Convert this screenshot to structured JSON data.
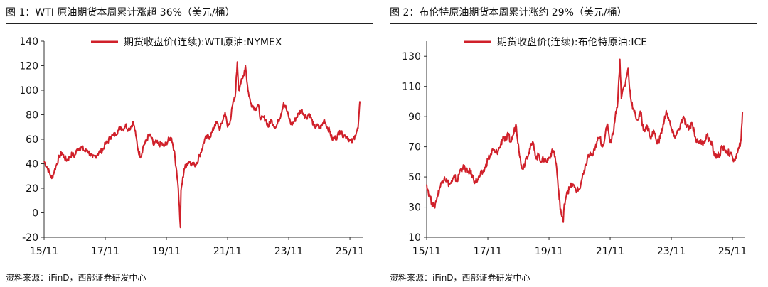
{
  "colors": {
    "line": "#d0202a",
    "axis": "#333333",
    "text": "#111111"
  },
  "chart_data": [
    {
      "type": "line",
      "figure_title": "图 1：WTI 原油期货本周累计涨超 36%（美元/桶）",
      "legend": "期货收盘价(连续):WTI原油:NYMEX",
      "source": "资料来源：iFinD，西部证券研发中心",
      "categories": [
        "15/11",
        "17/11",
        "19/11",
        "21/11",
        "23/11",
        "25/11"
      ],
      "y_ticks": [
        140,
        120,
        100,
        80,
        60,
        40,
        20,
        0,
        -20
      ],
      "xlim": [
        2015.833,
        2026.25
      ],
      "ylim": [
        -20,
        140
      ],
      "series": [
        {
          "name": "期货收盘价(连续):WTI原油:NYMEX",
          "points": [
            [
              2015.833,
              42
            ],
            [
              2015.917,
              38
            ],
            [
              2016.0,
              33
            ],
            [
              2016.083,
              28
            ],
            [
              2016.167,
              34
            ],
            [
              2016.25,
              40
            ],
            [
              2016.333,
              46
            ],
            [
              2016.417,
              49
            ],
            [
              2016.5,
              45
            ],
            [
              2016.583,
              43
            ],
            [
              2016.667,
              45
            ],
            [
              2016.75,
              48
            ],
            [
              2016.833,
              46
            ],
            [
              2016.917,
              52
            ],
            [
              2017.0,
              53
            ],
            [
              2017.083,
              53
            ],
            [
              2017.167,
              50
            ],
            [
              2017.25,
              51
            ],
            [
              2017.333,
              48
            ],
            [
              2017.417,
              45
            ],
            [
              2017.5,
              46
            ],
            [
              2017.583,
              48
            ],
            [
              2017.667,
              50
            ],
            [
              2017.75,
              51
            ],
            [
              2017.833,
              56
            ],
            [
              2017.917,
              58
            ],
            [
              2018.0,
              62
            ],
            [
              2018.083,
              63
            ],
            [
              2018.167,
              64
            ],
            [
              2018.25,
              67
            ],
            [
              2018.333,
              70
            ],
            [
              2018.417,
              68
            ],
            [
              2018.5,
              72
            ],
            [
              2018.583,
              68
            ],
            [
              2018.667,
              70
            ],
            [
              2018.75,
              74
            ],
            [
              2018.833,
              63
            ],
            [
              2018.917,
              50
            ],
            [
              2019.0,
              46
            ],
            [
              2019.083,
              55
            ],
            [
              2019.167,
              58
            ],
            [
              2019.25,
              63
            ],
            [
              2019.333,
              62
            ],
            [
              2019.417,
              55
            ],
            [
              2019.5,
              58
            ],
            [
              2019.583,
              55
            ],
            [
              2019.667,
              57
            ],
            [
              2019.75,
              54
            ],
            [
              2019.833,
              57
            ],
            [
              2019.917,
              60
            ],
            [
              2020.0,
              61
            ],
            [
              2020.083,
              51
            ],
            [
              2020.167,
              34
            ],
            [
              2020.22,
              20
            ],
            [
              2020.29,
              -12
            ],
            [
              2020.31,
              18
            ],
            [
              2020.333,
              22
            ],
            [
              2020.417,
              36
            ],
            [
              2020.5,
              40
            ],
            [
              2020.583,
              42
            ],
            [
              2020.667,
              40
            ],
            [
              2020.75,
              39
            ],
            [
              2020.833,
              41
            ],
            [
              2020.917,
              47
            ],
            [
              2021.0,
              52
            ],
            [
              2021.083,
              60
            ],
            [
              2021.167,
              62
            ],
            [
              2021.25,
              62
            ],
            [
              2021.333,
              66
            ],
            [
              2021.417,
              72
            ],
            [
              2021.5,
              73
            ],
            [
              2021.583,
              68
            ],
            [
              2021.667,
              75
            ],
            [
              2021.75,
              82
            ],
            [
              2021.833,
              70
            ],
            [
              2021.917,
              75
            ],
            [
              2022.0,
              88
            ],
            [
              2022.083,
              95
            ],
            [
              2022.15,
              123
            ],
            [
              2022.2,
              100
            ],
            [
              2022.25,
              105
            ],
            [
              2022.333,
              110
            ],
            [
              2022.417,
              120
            ],
            [
              2022.5,
              100
            ],
            [
              2022.583,
              90
            ],
            [
              2022.667,
              87
            ],
            [
              2022.75,
              85
            ],
            [
              2022.833,
              88
            ],
            [
              2022.917,
              76
            ],
            [
              2023.0,
              78
            ],
            [
              2023.083,
              76
            ],
            [
              2023.167,
              70
            ],
            [
              2023.25,
              76
            ],
            [
              2023.333,
              72
            ],
            [
              2023.417,
              70
            ],
            [
              2023.5,
              75
            ],
            [
              2023.583,
              81
            ],
            [
              2023.667,
              90
            ],
            [
              2023.75,
              85
            ],
            [
              2023.833,
              78
            ],
            [
              2023.917,
              72
            ],
            [
              2024.0,
              74
            ],
            [
              2024.083,
              78
            ],
            [
              2024.167,
              81
            ],
            [
              2024.25,
              84
            ],
            [
              2024.333,
              80
            ],
            [
              2024.417,
              78
            ],
            [
              2024.5,
              81
            ],
            [
              2024.583,
              76
            ],
            [
              2024.667,
              70
            ],
            [
              2024.75,
              71
            ],
            [
              2024.833,
              69
            ],
            [
              2024.917,
              71
            ],
            [
              2025.0,
              76
            ],
            [
              2025.083,
              70
            ],
            [
              2025.167,
              67
            ],
            [
              2025.25,
              60
            ],
            [
              2025.333,
              61
            ],
            [
              2025.417,
              62
            ],
            [
              2025.5,
              67
            ],
            [
              2025.583,
              64
            ],
            [
              2025.667,
              63
            ],
            [
              2025.75,
              62
            ],
            [
              2025.833,
              59
            ],
            [
              2025.917,
              58
            ],
            [
              2026.0,
              63
            ],
            [
              2026.05,
              66
            ],
            [
              2026.1,
              69
            ],
            [
              2026.13,
              80
            ],
            [
              2026.16,
              91
            ]
          ]
        }
      ]
    },
    {
      "type": "line",
      "figure_title": "图 2：布伦特原油期货本周累计涨约 29%（美元/桶）",
      "legend": "期货收盘价(连续):布伦特原油:ICE",
      "source": "资料来源：iFinD，西部证券研发中心",
      "categories": [
        "15/11",
        "17/11",
        "19/11",
        "21/11",
        "23/11",
        "25/11"
      ],
      "y_ticks": [
        130,
        110,
        90,
        70,
        50,
        30,
        10
      ],
      "xlim": [
        2015.833,
        2026.25
      ],
      "ylim": [
        10,
        140
      ],
      "series": [
        {
          "name": "期货收盘价(连续):布伦特原油:ICE",
          "points": [
            [
              2015.833,
              45
            ],
            [
              2015.917,
              38
            ],
            [
              2016.0,
              33
            ],
            [
              2016.083,
              30
            ],
            [
              2016.167,
              36
            ],
            [
              2016.25,
              42
            ],
            [
              2016.333,
              47
            ],
            [
              2016.417,
              50
            ],
            [
              2016.5,
              47
            ],
            [
              2016.583,
              45
            ],
            [
              2016.667,
              47
            ],
            [
              2016.75,
              50
            ],
            [
              2016.833,
              47
            ],
            [
              2016.917,
              54
            ],
            [
              2017.0,
              56
            ],
            [
              2017.083,
              56
            ],
            [
              2017.167,
              53
            ],
            [
              2017.25,
              54
            ],
            [
              2017.333,
              50
            ],
            [
              2017.417,
              47
            ],
            [
              2017.5,
              48
            ],
            [
              2017.583,
              51
            ],
            [
              2017.667,
              53
            ],
            [
              2017.75,
              56
            ],
            [
              2017.833,
              62
            ],
            [
              2017.917,
              64
            ],
            [
              2018.0,
              68
            ],
            [
              2018.083,
              66
            ],
            [
              2018.167,
              67
            ],
            [
              2018.25,
              71
            ],
            [
              2018.333,
              77
            ],
            [
              2018.417,
              74
            ],
            [
              2018.5,
              78
            ],
            [
              2018.583,
              73
            ],
            [
              2018.667,
              78
            ],
            [
              2018.75,
              85
            ],
            [
              2018.833,
              72
            ],
            [
              2018.917,
              58
            ],
            [
              2019.0,
              56
            ],
            [
              2019.083,
              63
            ],
            [
              2019.167,
              66
            ],
            [
              2019.25,
              71
            ],
            [
              2019.333,
              72
            ],
            [
              2019.417,
              62
            ],
            [
              2019.5,
              65
            ],
            [
              2019.583,
              60
            ],
            [
              2019.667,
              62
            ],
            [
              2019.75,
              60
            ],
            [
              2019.833,
              63
            ],
            [
              2019.917,
              66
            ],
            [
              2020.0,
              67
            ],
            [
              2020.083,
              56
            ],
            [
              2020.167,
              35
            ],
            [
              2020.25,
              24
            ],
            [
              2020.3,
              20
            ],
            [
              2020.333,
              32
            ],
            [
              2020.417,
              40
            ],
            [
              2020.5,
              42
            ],
            [
              2020.583,
              45
            ],
            [
              2020.667,
              43
            ],
            [
              2020.75,
              41
            ],
            [
              2020.833,
              42
            ],
            [
              2020.917,
              49
            ],
            [
              2021.0,
              54
            ],
            [
              2021.083,
              62
            ],
            [
              2021.167,
              65
            ],
            [
              2021.25,
              64
            ],
            [
              2021.333,
              68
            ],
            [
              2021.417,
              74
            ],
            [
              2021.5,
              76
            ],
            [
              2021.583,
              70
            ],
            [
              2021.667,
              77
            ],
            [
              2021.75,
              85
            ],
            [
              2021.833,
              73
            ],
            [
              2021.917,
              78
            ],
            [
              2022.0,
              90
            ],
            [
              2022.083,
              100
            ],
            [
              2022.15,
              128
            ],
            [
              2022.2,
              102
            ],
            [
              2022.25,
              108
            ],
            [
              2022.333,
              112
            ],
            [
              2022.417,
              122
            ],
            [
              2022.5,
              103
            ],
            [
              2022.583,
              95
            ],
            [
              2022.667,
              90
            ],
            [
              2022.75,
              88
            ],
            [
              2022.833,
              93
            ],
            [
              2022.917,
              81
            ],
            [
              2023.0,
              83
            ],
            [
              2023.083,
              82
            ],
            [
              2023.167,
              75
            ],
            [
              2023.25,
              81
            ],
            [
              2023.333,
              75
            ],
            [
              2023.417,
              73
            ],
            [
              2023.5,
              79
            ],
            [
              2023.583,
              85
            ],
            [
              2023.667,
              94
            ],
            [
              2023.75,
              88
            ],
            [
              2023.833,
              82
            ],
            [
              2023.917,
              77
            ],
            [
              2024.0,
              78
            ],
            [
              2024.083,
              82
            ],
            [
              2024.167,
              86
            ],
            [
              2024.25,
              89
            ],
            [
              2024.333,
              83
            ],
            [
              2024.417,
              82
            ],
            [
              2024.5,
              86
            ],
            [
              2024.583,
              80
            ],
            [
              2024.667,
              73
            ],
            [
              2024.75,
              74
            ],
            [
              2024.833,
              72
            ],
            [
              2024.917,
              74
            ],
            [
              2025.0,
              78
            ],
            [
              2025.083,
              74
            ],
            [
              2025.167,
              71
            ],
            [
              2025.25,
              64
            ],
            [
              2025.333,
              64
            ],
            [
              2025.417,
              65
            ],
            [
              2025.5,
              70
            ],
            [
              2025.583,
              68
            ],
            [
              2025.667,
              67
            ],
            [
              2025.75,
              65
            ],
            [
              2025.833,
              63
            ],
            [
              2025.917,
              61
            ],
            [
              2026.0,
              66
            ],
            [
              2026.05,
              69
            ],
            [
              2026.1,
              73
            ],
            [
              2026.13,
              82
            ],
            [
              2026.16,
              93
            ]
          ]
        }
      ]
    }
  ]
}
